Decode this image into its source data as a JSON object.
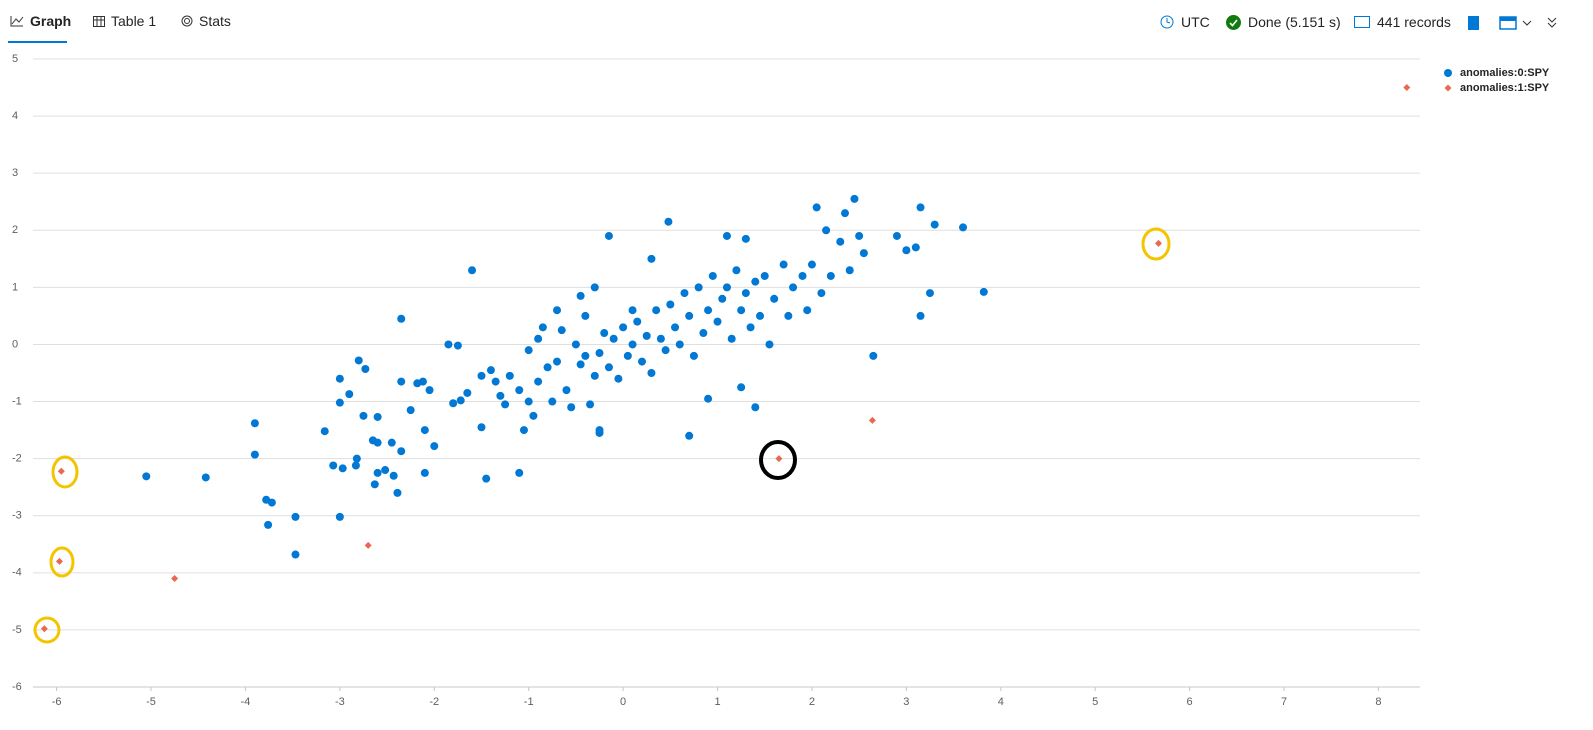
{
  "toolbar": {
    "tabs": [
      "Graph",
      "Table 1",
      "Stats"
    ],
    "status": [
      "UTC",
      "Done (5.151 s)",
      "441 records"
    ]
  },
  "chart_data": {
    "type": "scatter",
    "xlim": [
      -6.25,
      8.44
    ],
    "xticks": [
      -6,
      -5,
      -4,
      -3,
      -2,
      -1,
      0,
      1,
      2,
      3,
      4,
      5,
      6,
      7,
      8
    ],
    "ylim": [
      -6,
      5
    ],
    "yticks": [
      -6,
      -5,
      -4,
      -3,
      -2,
      -1,
      0,
      1,
      2,
      3,
      4,
      5
    ],
    "grid": true,
    "legend": "top-right",
    "series": [
      {
        "name": "anomalies:0:SPY",
        "color": "#0078d4",
        "marker": "circle",
        "x": [
          -5.05,
          -4.42,
          -3.9,
          -3.9,
          -3.78,
          -3.72,
          -3.76,
          -3.47,
          -3.47,
          -3.0,
          -3.16,
          -3.07,
          -2.97,
          -3.0,
          -3.0,
          -2.9,
          -2.82,
          -2.83,
          -2.8,
          -2.73,
          -2.75,
          -2.6,
          -2.65,
          -2.6,
          -2.6,
          -2.52,
          -2.63,
          -2.45,
          -2.35,
          -2.39,
          -2.43,
          -2.35,
          -2.35,
          -2.25,
          -2.18,
          -2.12,
          -2.1,
          -2.05,
          -2.0,
          -2.1,
          -1.85,
          -1.75,
          -1.8,
          -1.72,
          -1.65,
          -1.6,
          -1.5,
          -1.5,
          -1.4,
          -1.35,
          -1.3,
          -1.25,
          -1.45,
          -1.1,
          -1.05,
          -1.1,
          -1.2,
          -1.0,
          -1.0,
          -0.95,
          -0.9,
          -0.8,
          -0.9,
          -0.85,
          -0.75,
          -0.7,
          -0.65,
          -0.6,
          -0.55,
          -0.5,
          -0.45,
          -0.4,
          -0.35,
          -0.3,
          -0.25,
          -0.2,
          -0.15,
          -0.1,
          -0.05,
          0.0,
          0.05,
          0.1,
          0.15,
          0.2,
          0.25,
          0.3,
          0.35,
          0.4,
          0.45,
          0.5,
          0.55,
          0.6,
          0.65,
          0.7,
          0.75,
          0.8,
          0.85,
          0.9,
          0.95,
          1.0,
          1.05,
          1.1,
          1.15,
          1.2,
          1.25,
          1.3,
          1.35,
          1.4,
          1.45,
          1.5,
          1.55,
          1.6,
          1.7,
          1.75,
          1.8,
          1.9,
          1.95,
          2.0,
          2.05,
          2.1,
          2.15,
          2.2,
          2.3,
          2.35,
          2.4,
          2.45,
          2.5,
          2.55,
          2.65,
          2.9,
          3.0,
          3.1,
          3.15,
          3.15,
          3.25,
          3.3,
          3.6,
          3.82,
          0.7,
          0.3,
          -0.15,
          0.48,
          1.4,
          0.9,
          1.25,
          -0.25,
          -0.25,
          -0.4,
          -0.7,
          0.1,
          1.3,
          1.1,
          -0.45,
          -0.3
        ],
        "values": [
          -2.31,
          -2.33,
          -1.38,
          -1.93,
          -2.72,
          -2.77,
          -3.16,
          -3.02,
          -3.68,
          -3.02,
          -1.52,
          -2.12,
          -2.17,
          -0.6,
          -1.02,
          -0.87,
          -2.0,
          -2.12,
          -0.28,
          -0.43,
          -1.25,
          -1.27,
          -1.68,
          -1.72,
          -2.25,
          -2.2,
          -2.45,
          -1.72,
          -1.87,
          -2.6,
          -2.3,
          -0.65,
          0.45,
          -1.15,
          -0.68,
          -0.65,
          -1.5,
          -0.8,
          -1.78,
          -2.25,
          0.0,
          -0.02,
          -1.03,
          -0.98,
          -0.85,
          1.3,
          -0.55,
          -1.45,
          -0.45,
          -0.65,
          -0.9,
          -1.05,
          -2.35,
          -0.8,
          -1.5,
          -2.25,
          -0.55,
          -0.1,
          -1.0,
          -1.25,
          -0.65,
          -0.4,
          0.1,
          0.3,
          -1.0,
          -0.3,
          0.25,
          -0.8,
          -1.1,
          0.0,
          -0.35,
          0.5,
          -1.05,
          -0.55,
          -0.15,
          0.2,
          -0.4,
          0.1,
          -0.6,
          0.3,
          -0.2,
          0.0,
          0.4,
          -0.3,
          0.15,
          -0.5,
          0.6,
          0.1,
          -0.1,
          0.7,
          0.3,
          0.0,
          0.9,
          0.5,
          -0.2,
          1.0,
          0.2,
          0.6,
          1.2,
          0.4,
          0.8,
          1.0,
          0.1,
          1.3,
          0.6,
          0.9,
          0.3,
          1.1,
          0.5,
          1.2,
          0.0,
          0.8,
          1.4,
          0.5,
          1.0,
          1.2,
          0.6,
          1.4,
          2.4,
          0.9,
          2.0,
          1.2,
          1.8,
          2.3,
          1.3,
          2.55,
          1.9,
          1.6,
          -0.2,
          1.9,
          1.65,
          1.7,
          2.4,
          0.5,
          0.9,
          2.1,
          2.05,
          0.92,
          -1.6,
          1.5,
          1.9,
          2.15,
          -1.1,
          -0.95,
          -0.75,
          -1.55,
          -1.5,
          -0.2,
          0.6,
          0.6,
          1.85,
          1.9,
          0.85,
          1.0
        ]
      },
      {
        "name": "anomalies:1:SPY",
        "color": "#e8694f",
        "marker": "diamond",
        "x": [
          8.3,
          5.67,
          2.64,
          1.65,
          -2.7,
          -4.75,
          -5.95,
          -5.97,
          -6.13
        ],
        "values": [
          4.5,
          1.77,
          -1.33,
          -2.0,
          -3.52,
          -4.1,
          -2.22,
          -3.8,
          -4.98
        ]
      }
    ]
  }
}
